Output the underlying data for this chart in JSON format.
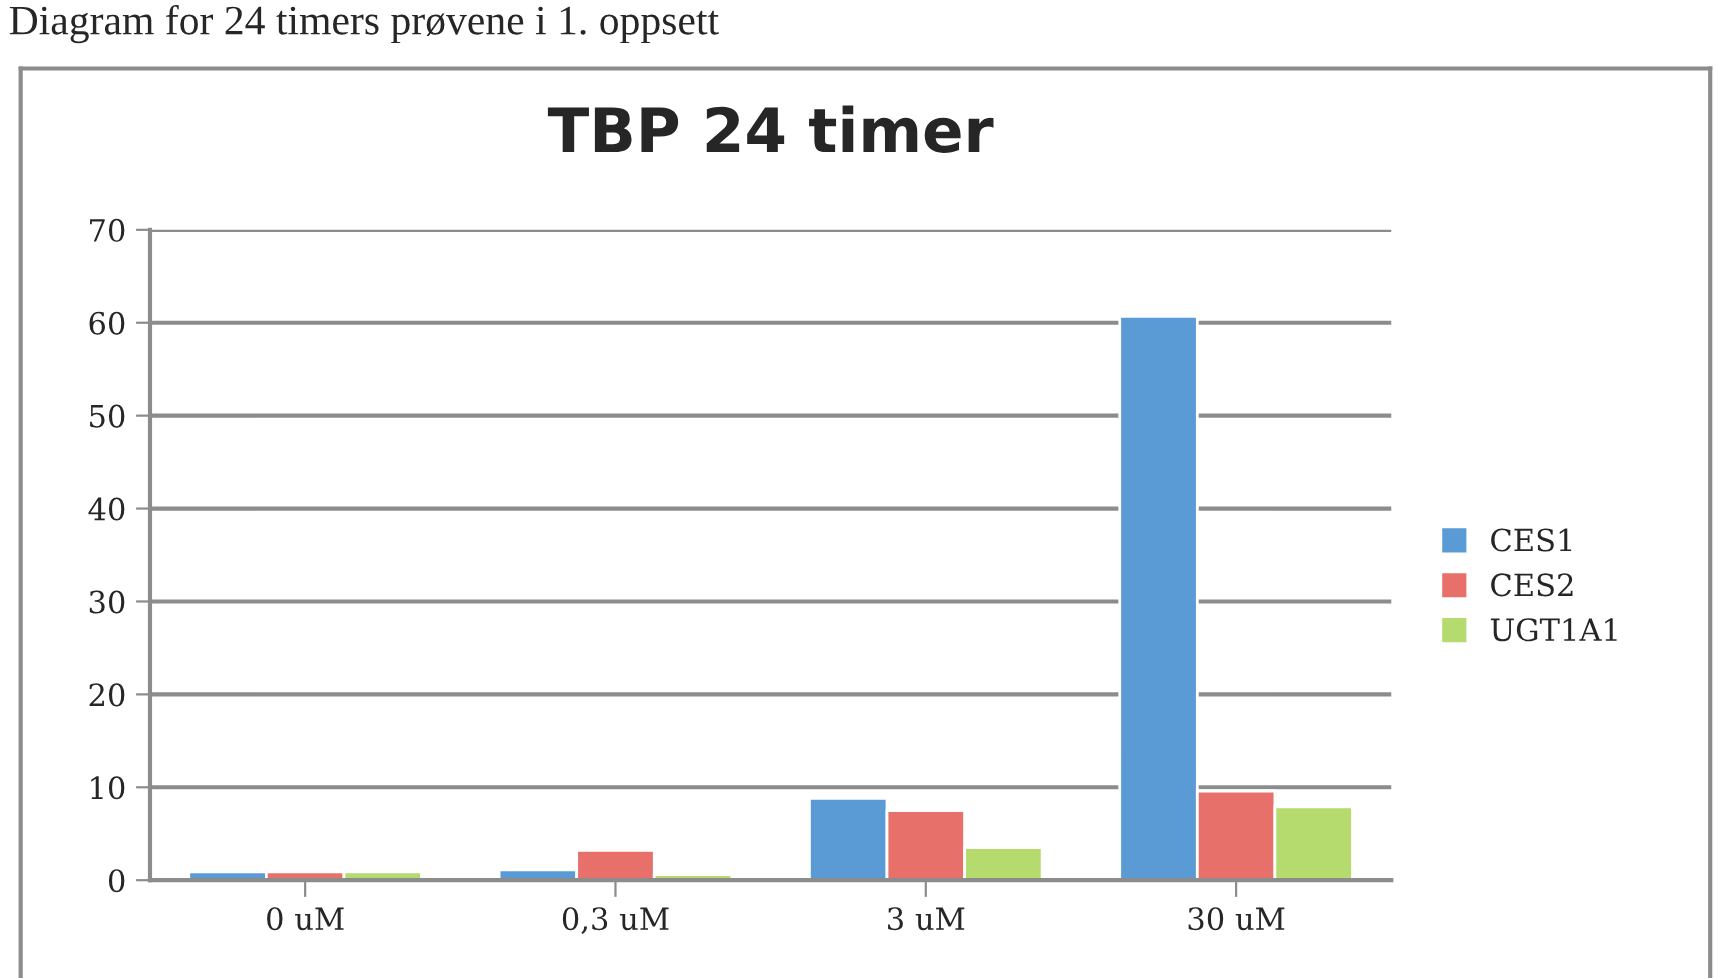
{
  "chart_data": {
    "type": "bar",
    "title": "TBP 24 timer",
    "annotations": [
      "Diagram for 24 timers prøvene i 1. oppsett"
    ],
    "categories": [
      "0 uM",
      "0,3 uM",
      "3 uM",
      "30 uM"
    ],
    "series": [
      {
        "name": "CES1",
        "color": "#5b9bd5",
        "values": [
          0.9,
          1.1,
          8.8,
          60.7
        ]
      },
      {
        "name": "CES2",
        "color": "#e8706a",
        "values": [
          0.9,
          3.2,
          7.5,
          9.6
        ]
      },
      {
        "name": "UGT1A1",
        "color": "#b5da6e",
        "values": [
          0.9,
          0.6,
          3.5,
          7.9
        ]
      }
    ],
    "ylim": [
      0,
      70
    ],
    "yticks": [
      0,
      10,
      20,
      30,
      40,
      50,
      60,
      70
    ],
    "grid": "y",
    "legend": "right"
  }
}
